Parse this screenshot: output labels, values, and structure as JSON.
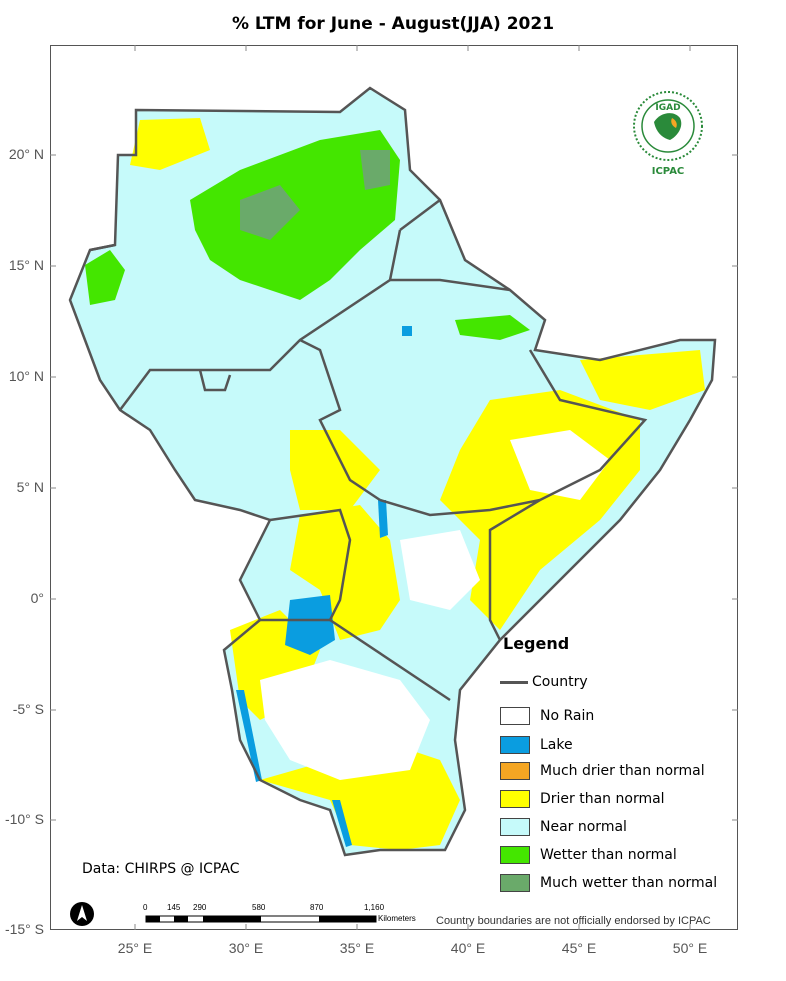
{
  "title": "% LTM  for   June - August(JJA)  2021",
  "lat_labels": [
    "20° N",
    "15° N",
    "10° N",
    "5° N",
    "0°",
    "-5° S",
    "-10° S",
    "-15° S"
  ],
  "lon_labels": [
    "25° E",
    "30° E",
    "35° E",
    "40° E",
    "45° E",
    "50° E"
  ],
  "legend": {
    "title": "Legend",
    "country": "Country",
    "items": [
      {
        "label": "No Rain",
        "color": "#ffffff"
      },
      {
        "label": "Lake",
        "color": "#0a9de0"
      },
      {
        "label": "Much drier than normal",
        "color": "#f5a623"
      },
      {
        "label": "Drier than normal",
        "color": "#ffff00"
      },
      {
        "label": "Near normal",
        "color": "#c6fafa"
      },
      {
        "label": "Wetter than normal",
        "color": "#44e600"
      },
      {
        "label": "Much wetter than normal",
        "color": "#6aaa6a"
      }
    ]
  },
  "data_credit": "Data: CHIRPS @ ICPAC",
  "disclaimer": "Country boundaries are not officially endorsed by ICPAC",
  "logo": {
    "top_text": "IGAD",
    "bottom_text": "ICPAC"
  },
  "scalebar": {
    "ticks": [
      "0",
      "145",
      "290",
      "580",
      "870",
      "1,160"
    ],
    "unit": "Kilometers"
  },
  "colors": {
    "border": "#555555",
    "near_normal": "#c6fafa",
    "drier": "#ffff00",
    "wetter": "#44e600",
    "much_wetter": "#6aaa6a",
    "lake": "#0a9de0",
    "no_rain": "#ffffff"
  }
}
